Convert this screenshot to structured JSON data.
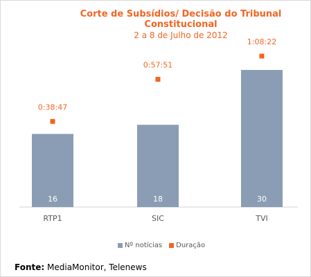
{
  "chart_data": {
    "type": "bar",
    "title": "Corte de Subsídios/ Decisão do Tribunal Constitucional",
    "subtitle": "2 a 8 de Julho de 2012",
    "categories": [
      "RTP1",
      "SIC",
      "TVI"
    ],
    "series": [
      {
        "name": "Nº notícias",
        "type": "bar",
        "values": [
          16,
          18,
          30
        ],
        "color": "#8b9db4",
        "labels": [
          "16",
          "18",
          "30"
        ]
      },
      {
        "name": "Duração",
        "type": "point",
        "values_seconds": [
          2327,
          3471,
          4102
        ],
        "labels": [
          "0:38:47",
          "0:57:51",
          "1:08:22"
        ],
        "color": "#f26522"
      }
    ],
    "legend_position": "bottom",
    "grid": false
  },
  "source": {
    "label": "Fonte:",
    "text": "MediaMonitor, Telenews"
  }
}
